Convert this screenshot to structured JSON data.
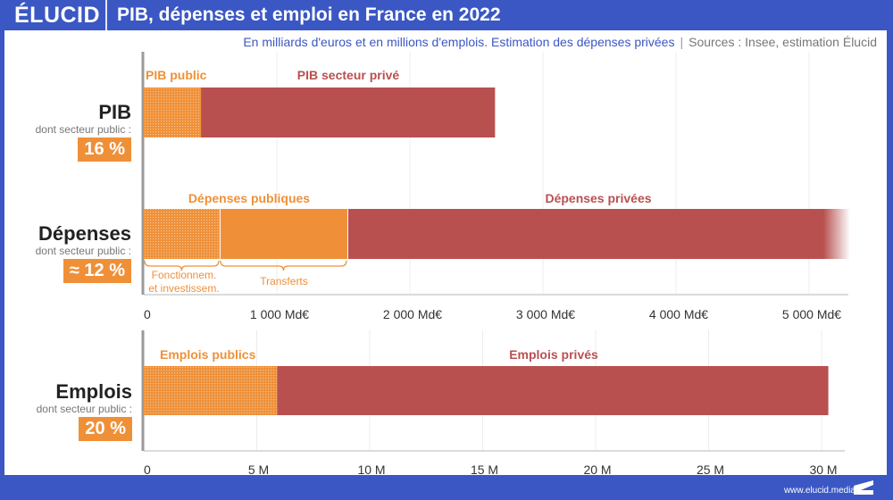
{
  "header": {
    "logo": "ÉLUCID",
    "title": "PIB, dépenses et emploi en France en 2022"
  },
  "subtitle": {
    "main": "En milliards d'euros et en millions d'emplois. Estimation des dépenses privées",
    "separator": "|",
    "sources": "Sources : Insee, estimation Élucid"
  },
  "footer": {
    "url": "www.elucid.media"
  },
  "colors": {
    "public": "#ef9038",
    "private": "#b95050",
    "brand": "#3b57c4"
  },
  "rows": [
    {
      "label": "PIB",
      "note": "dont secteur public :",
      "share": "16 %"
    },
    {
      "label": "Dépenses",
      "note": "dont secteur public :",
      "share": "≈ 12 %"
    },
    {
      "label": "Emplois",
      "note": "dont secteur public :",
      "share": "20 %"
    }
  ],
  "chart_data": [
    {
      "type": "bar",
      "orientation": "horizontal",
      "stacked": true,
      "unit": "Md€",
      "xlim": [
        0,
        5000
      ],
      "x_ticks": [
        0,
        1000,
        2000,
        3000,
        4000,
        5000
      ],
      "x_tick_labels": [
        "0",
        "1 000 Md€",
        "2 000 Md€",
        "3 000 Md€",
        "4 000 Md€",
        "5 000 Md€"
      ],
      "grid": true,
      "categories": [
        "PIB",
        "Dépenses"
      ],
      "series": [
        {
          "name": "PIB public",
          "category": "PIB",
          "value": 430,
          "color": "#ef9038",
          "pattern": "dotted"
        },
        {
          "name": "PIB secteur privé",
          "category": "PIB",
          "value": 2210,
          "color": "#b95050"
        },
        {
          "name": "Fonctionnem. et investissem.",
          "category": "Dépenses",
          "value": 570,
          "color": "#ef9038",
          "pattern": "dotted"
        },
        {
          "name": "Transferts",
          "category": "Dépenses",
          "value": 960,
          "color": "#ef9038"
        },
        {
          "name": "Dépenses privées",
          "category": "Dépenses",
          "value": 3770,
          "color": "#b95050",
          "note": "bar fades beyond axis end"
        }
      ],
      "labels": {
        "pib_public": "PIB public",
        "pib_private": "PIB secteur privé",
        "dep_public": "Dépenses publiques",
        "dep_private": "Dépenses privées",
        "dep_fonct_1": "Fonctionnem.",
        "dep_fonct_2": "et investissem.",
        "dep_transferts": "Transferts"
      }
    },
    {
      "type": "bar",
      "orientation": "horizontal",
      "stacked": true,
      "unit": "M",
      "xlim": [
        0,
        30
      ],
      "x_ticks": [
        0,
        5,
        10,
        15,
        20,
        25,
        30
      ],
      "x_tick_labels": [
        "0",
        "5 M",
        "10 M",
        "15 M",
        "20 M",
        "25 M",
        "30 M"
      ],
      "grid": true,
      "categories": [
        "Emplois"
      ],
      "series": [
        {
          "name": "Emplois publics",
          "category": "Emplois",
          "value": 5.9,
          "color": "#ef9038",
          "pattern": "dotted"
        },
        {
          "name": "Emplois privés",
          "category": "Emplois",
          "value": 24.4,
          "color": "#b95050"
        }
      ],
      "labels": {
        "emp_public": "Emplois publics",
        "emp_private": "Emplois privés"
      }
    }
  ]
}
